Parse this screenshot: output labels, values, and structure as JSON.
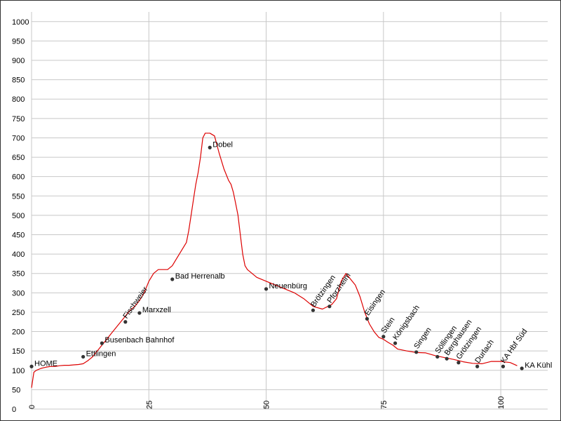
{
  "chart_data": {
    "type": "line",
    "title": "",
    "xlabel": "",
    "ylabel": "",
    "xlim": [
      0,
      110
    ],
    "ylim": [
      0,
      1025
    ],
    "grid": true,
    "x_ticks": [
      {
        "value": 0,
        "label": "0"
      },
      {
        "value": 25,
        "label": "25"
      },
      {
        "value": 50,
        "label": "50"
      },
      {
        "value": 75,
        "label": "75"
      },
      {
        "value": 100,
        "label": "100"
      }
    ],
    "y_ticks": [
      {
        "value": 0,
        "label": "0"
      },
      {
        "value": 50,
        "label": "50"
      },
      {
        "value": 100,
        "label": "100"
      },
      {
        "value": 150,
        "label": "150"
      },
      {
        "value": 200,
        "label": "200"
      },
      {
        "value": 250,
        "label": "250"
      },
      {
        "value": 300,
        "label": "300"
      },
      {
        "value": 350,
        "label": "350"
      },
      {
        "value": 400,
        "label": "400"
      },
      {
        "value": 450,
        "label": "450"
      },
      {
        "value": 500,
        "label": "500"
      },
      {
        "value": 550,
        "label": "550"
      },
      {
        "value": 600,
        "label": "600"
      },
      {
        "value": 650,
        "label": "650"
      },
      {
        "value": 700,
        "label": "700"
      },
      {
        "value": 750,
        "label": "750"
      },
      {
        "value": 800,
        "label": "800"
      },
      {
        "value": 850,
        "label": "850"
      },
      {
        "value": 900,
        "label": "900"
      },
      {
        "value": 950,
        "label": "950"
      },
      {
        "value": 1000,
        "label": "1000"
      }
    ],
    "series": [
      {
        "color": "#dd0000",
        "x": [
          0,
          0.5,
          1,
          2,
          3,
          4,
          5,
          6,
          7,
          8,
          9,
          10,
          11,
          12,
          13,
          14,
          15,
          16,
          17,
          18,
          19,
          20,
          21,
          22,
          23,
          24,
          25,
          26,
          27,
          28,
          29,
          30,
          31,
          32,
          33,
          33.5,
          34,
          34.5,
          35,
          35.5,
          36,
          36.5,
          37,
          38,
          39,
          40,
          41,
          42,
          42.5,
          43,
          43.5,
          44,
          44.5,
          45,
          45.5,
          46,
          48,
          50,
          52,
          54,
          56,
          58,
          60,
          62,
          64,
          65,
          66,
          67,
          68,
          69,
          70,
          71,
          72,
          73,
          74,
          75,
          76,
          77,
          78,
          80,
          82,
          84,
          86,
          88,
          90,
          92,
          94,
          96,
          98,
          100,
          102,
          103.5
        ],
        "y": [
          55,
          95,
          100,
          105,
          108,
          110,
          110,
          112,
          113,
          113,
          114,
          115,
          117,
          125,
          135,
          150,
          165,
          180,
          195,
          210,
          225,
          240,
          255,
          265,
          280,
          300,
          330,
          350,
          360,
          360,
          360,
          370,
          390,
          410,
          430,
          460,
          500,
          540,
          580,
          610,
          650,
          700,
          712,
          712,
          705,
          660,
          620,
          590,
          580,
          560,
          530,
          500,
          450,
          400,
          370,
          360,
          340,
          330,
          320,
          310,
          300,
          285,
          265,
          258,
          270,
          285,
          330,
          350,
          335,
          320,
          290,
          250,
          220,
          200,
          185,
          180,
          172,
          165,
          155,
          150,
          146,
          145,
          138,
          133,
          128,
          122,
          118,
          117,
          123,
          123,
          120,
          112
        ]
      }
    ],
    "waypoints": [
      {
        "label": "HOME",
        "x": 0,
        "y": 110,
        "rotate": false
      },
      {
        "label": "Ettlingen",
        "x": 11,
        "y": 135,
        "rotate": false
      },
      {
        "label": "Busenbach Bahnhof",
        "x": 15,
        "y": 170,
        "rotate": false
      },
      {
        "label": "Fischweier",
        "x": 20,
        "y": 225,
        "rotate": true
      },
      {
        "label": "Marxzell",
        "x": 23,
        "y": 248,
        "rotate": false
      },
      {
        "label": "Bad Herrenalb",
        "x": 30,
        "y": 335,
        "rotate": false
      },
      {
        "label": "Dobel",
        "x": 38,
        "y": 675,
        "rotate": false
      },
      {
        "label": "Neuenbürg",
        "x": 50,
        "y": 310,
        "rotate": false
      },
      {
        "label": "Brötzingen",
        "x": 60,
        "y": 255,
        "rotate": true
      },
      {
        "label": "Pforzheim",
        "x": 63.5,
        "y": 265,
        "rotate": true
      },
      {
        "label": "Eisingen",
        "x": 71.5,
        "y": 233,
        "rotate": true
      },
      {
        "label": "Stein",
        "x": 75,
        "y": 187,
        "rotate": true
      },
      {
        "label": "Königsbach",
        "x": 77.5,
        "y": 170,
        "rotate": true
      },
      {
        "label": "Singen",
        "x": 82,
        "y": 147,
        "rotate": true
      },
      {
        "label": "Söllingen",
        "x": 86.5,
        "y": 135,
        "rotate": true
      },
      {
        "label": "Berghausen",
        "x": 88.5,
        "y": 130,
        "rotate": true
      },
      {
        "label": "Grötzingen",
        "x": 91,
        "y": 120,
        "rotate": true
      },
      {
        "label": "Durlach",
        "x": 95,
        "y": 110,
        "rotate": true
      },
      {
        "label": "KA Hbf Süd",
        "x": 100.5,
        "y": 110,
        "rotate": true
      },
      {
        "label": "KA Kühl",
        "x": 104.5,
        "y": 105,
        "rotate": false
      }
    ]
  }
}
